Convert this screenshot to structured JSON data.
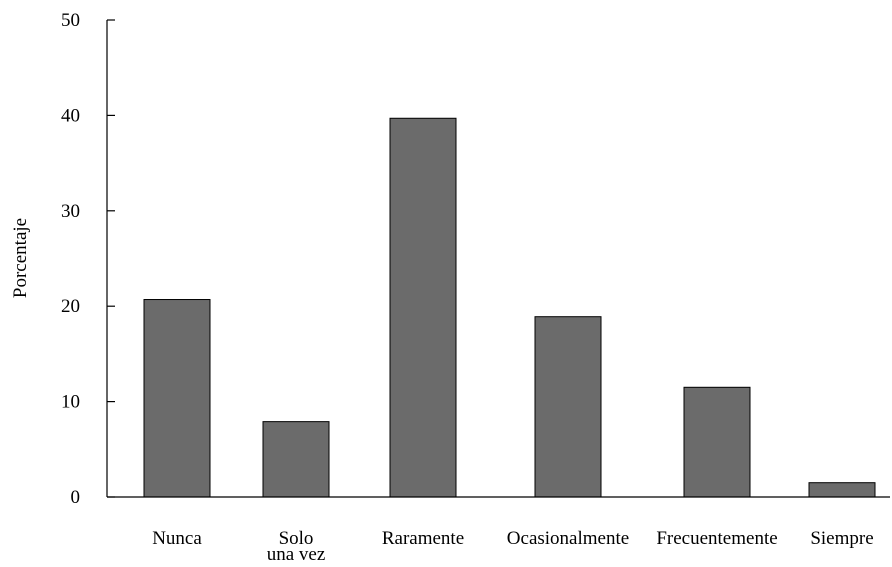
{
  "chart_data": {
    "type": "bar",
    "categories": [
      [
        "Nunca"
      ],
      [
        "Solo",
        "una vez"
      ],
      [
        "Raramente"
      ],
      [
        "Ocasionalmente"
      ],
      [
        "Frecuentemente"
      ],
      [
        "Siempre"
      ]
    ],
    "values": [
      20.7,
      7.9,
      39.7,
      18.9,
      11.5,
      1.5
    ],
    "ylabel": "Porcentaje",
    "ylim": [
      0,
      50
    ],
    "yticks": [
      "0",
      "10",
      "20",
      "30",
      "40",
      "50"
    ],
    "bar_color": "#6b6b6b",
    "grid": false,
    "legend": "none"
  }
}
